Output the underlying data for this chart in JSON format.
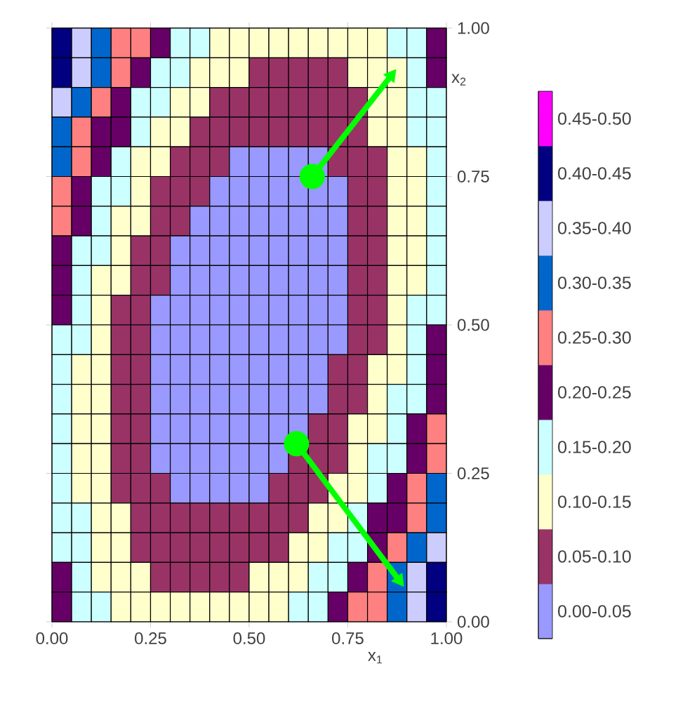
{
  "chart_data": {
    "type": "heatmap",
    "x": [
      0.025,
      0.075,
      0.125,
      0.175,
      0.225,
      0.275,
      0.325,
      0.375,
      0.425,
      0.475,
      0.525,
      0.575,
      0.625,
      0.675,
      0.725,
      0.775,
      0.825,
      0.875,
      0.925,
      0.975
    ],
    "y": [
      0.975,
      0.925,
      0.875,
      0.825,
      0.775,
      0.725,
      0.675,
      0.625,
      0.575,
      0.525,
      0.475,
      0.425,
      0.375,
      0.325,
      0.275,
      0.225,
      0.175,
      0.125,
      0.075,
      0.025
    ],
    "cells": [
      [
        0.425,
        0.375,
        0.325,
        0.275,
        0.275,
        0.225,
        0.175,
        0.175,
        0.125,
        0.125,
        0.125,
        0.125,
        0.125,
        0.125,
        0.125,
        0.125,
        0.125,
        0.175,
        0.175,
        0.225
      ],
      [
        0.425,
        0.375,
        0.325,
        0.275,
        0.225,
        0.175,
        0.175,
        0.125,
        0.125,
        0.125,
        0.075,
        0.075,
        0.075,
        0.075,
        0.075,
        0.125,
        0.125,
        0.125,
        0.175,
        0.225
      ],
      [
        0.375,
        0.325,
        0.275,
        0.225,
        0.175,
        0.175,
        0.125,
        0.125,
        0.075,
        0.075,
        0.075,
        0.075,
        0.075,
        0.075,
        0.075,
        0.075,
        0.125,
        0.125,
        0.175,
        0.175
      ],
      [
        0.325,
        0.275,
        0.225,
        0.225,
        0.175,
        0.125,
        0.125,
        0.075,
        0.075,
        0.075,
        0.075,
        0.075,
        0.075,
        0.075,
        0.075,
        0.075,
        0.125,
        0.125,
        0.175,
        0.175
      ],
      [
        0.325,
        0.275,
        0.225,
        0.175,
        0.125,
        0.125,
        0.075,
        0.075,
        0.075,
        0.025,
        0.025,
        0.025,
        0.025,
        0.025,
        0.075,
        0.075,
        0.075,
        0.125,
        0.125,
        0.175
      ],
      [
        0.275,
        0.225,
        0.175,
        0.175,
        0.125,
        0.075,
        0.075,
        0.075,
        0.025,
        0.025,
        0.025,
        0.025,
        0.025,
        0.025,
        0.025,
        0.075,
        0.075,
        0.125,
        0.125,
        0.175
      ],
      [
        0.275,
        0.225,
        0.175,
        0.125,
        0.125,
        0.075,
        0.075,
        0.025,
        0.025,
        0.025,
        0.025,
        0.025,
        0.025,
        0.025,
        0.025,
        0.075,
        0.075,
        0.125,
        0.125,
        0.175
      ],
      [
        0.225,
        0.175,
        0.175,
        0.125,
        0.075,
        0.075,
        0.025,
        0.025,
        0.025,
        0.025,
        0.025,
        0.025,
        0.025,
        0.025,
        0.025,
        0.075,
        0.075,
        0.125,
        0.125,
        0.175
      ],
      [
        0.225,
        0.175,
        0.125,
        0.125,
        0.075,
        0.075,
        0.025,
        0.025,
        0.025,
        0.025,
        0.025,
        0.025,
        0.025,
        0.025,
        0.025,
        0.075,
        0.075,
        0.125,
        0.125,
        0.175
      ],
      [
        0.225,
        0.175,
        0.125,
        0.075,
        0.075,
        0.025,
        0.025,
        0.025,
        0.025,
        0.025,
        0.025,
        0.025,
        0.025,
        0.025,
        0.025,
        0.075,
        0.075,
        0.125,
        0.175,
        0.175
      ],
      [
        0.175,
        0.175,
        0.125,
        0.075,
        0.075,
        0.025,
        0.025,
        0.025,
        0.025,
        0.025,
        0.025,
        0.025,
        0.025,
        0.025,
        0.025,
        0.075,
        0.075,
        0.125,
        0.175,
        0.225
      ],
      [
        0.175,
        0.125,
        0.125,
        0.075,
        0.075,
        0.025,
        0.025,
        0.025,
        0.025,
        0.025,
        0.025,
        0.025,
        0.025,
        0.025,
        0.075,
        0.075,
        0.125,
        0.125,
        0.175,
        0.225
      ],
      [
        0.175,
        0.125,
        0.125,
        0.075,
        0.075,
        0.025,
        0.025,
        0.025,
        0.025,
        0.025,
        0.025,
        0.025,
        0.025,
        0.025,
        0.075,
        0.075,
        0.125,
        0.175,
        0.175,
        0.225
      ],
      [
        0.175,
        0.125,
        0.125,
        0.075,
        0.075,
        0.025,
        0.025,
        0.025,
        0.025,
        0.025,
        0.025,
        0.025,
        0.025,
        0.075,
        0.075,
        0.125,
        0.125,
        0.175,
        0.225,
        0.275
      ],
      [
        0.175,
        0.125,
        0.125,
        0.075,
        0.075,
        0.025,
        0.025,
        0.025,
        0.025,
        0.025,
        0.025,
        0.025,
        0.075,
        0.075,
        0.075,
        0.125,
        0.175,
        0.175,
        0.225,
        0.275
      ],
      [
        0.175,
        0.125,
        0.125,
        0.075,
        0.075,
        0.075,
        0.025,
        0.025,
        0.025,
        0.025,
        0.025,
        0.075,
        0.075,
        0.075,
        0.125,
        0.125,
        0.175,
        0.225,
        0.275,
        0.325
      ],
      [
        0.175,
        0.175,
        0.125,
        0.125,
        0.075,
        0.075,
        0.075,
        0.075,
        0.075,
        0.075,
        0.075,
        0.075,
        0.075,
        0.125,
        0.125,
        0.175,
        0.225,
        0.225,
        0.275,
        0.325
      ],
      [
        0.175,
        0.175,
        0.125,
        0.125,
        0.075,
        0.075,
        0.075,
        0.075,
        0.075,
        0.075,
        0.075,
        0.075,
        0.125,
        0.125,
        0.175,
        0.175,
        0.225,
        0.275,
        0.325,
        0.375
      ],
      [
        0.225,
        0.175,
        0.125,
        0.125,
        0.125,
        0.075,
        0.075,
        0.075,
        0.075,
        0.075,
        0.125,
        0.125,
        0.125,
        0.175,
        0.175,
        0.225,
        0.275,
        0.325,
        0.375,
        0.425
      ],
      [
        0.225,
        0.175,
        0.175,
        0.125,
        0.125,
        0.125,
        0.125,
        0.125,
        0.125,
        0.125,
        0.125,
        0.125,
        0.175,
        0.175,
        0.225,
        0.275,
        0.275,
        0.325,
        0.375,
        0.425
      ]
    ],
    "colors": [
      "#9999ff",
      "#993366",
      "#ffffcc",
      "#ccffff",
      "#660066",
      "#ff8080",
      "#0066cc",
      "#ccccff",
      "#000080",
      "#ff00ff"
    ],
    "clim": [
      0,
      0.5
    ],
    "cticks": [
      {
        "value": 0.025,
        "label": "0.00-0.05"
      },
      {
        "value": 0.075,
        "label": "0.05-0.10"
      },
      {
        "value": 0.125,
        "label": "0.10-0.15"
      },
      {
        "value": 0.175,
        "label": "0.15-0.20"
      },
      {
        "value": 0.225,
        "label": "0.20-0.25"
      },
      {
        "value": 0.275,
        "label": "0.25-0.30"
      },
      {
        "value": 0.325,
        "label": "0.30-0.35"
      },
      {
        "value": 0.375,
        "label": "0.35-0.40"
      },
      {
        "value": 0.425,
        "label": "0.40-0.45"
      },
      {
        "value": 0.475,
        "label": "0.45-0.50"
      }
    ],
    "xlim": [
      0,
      1
    ],
    "ylim": [
      0,
      1
    ],
    "xticks": [
      {
        "value": 0,
        "label": "0.00"
      },
      {
        "value": 0.25,
        "label": "0.25"
      },
      {
        "value": 0.5,
        "label": "0.50"
      },
      {
        "value": 0.75,
        "label": "0.75"
      },
      {
        "value": 1,
        "label": "1.00"
      }
    ],
    "yticks": [
      {
        "value": 0,
        "label": "0.00"
      },
      {
        "value": 0.25,
        "label": "0.25"
      },
      {
        "value": 0.5,
        "label": "0.50"
      },
      {
        "value": 0.75,
        "label": "0.75"
      },
      {
        "value": 1,
        "label": "1.00"
      }
    ],
    "xlabel": "x$_{1}$",
    "ylabel": "x$_{2}$",
    "series": [
      {
        "type": "line",
        "color": "#00ff00",
        "marker": "circle",
        "x": [
          0.62,
          0.88
        ],
        "values": [
          0.3,
          0.07
        ]
      },
      {
        "type": "line",
        "color": "#00ff00",
        "marker": "circle",
        "x": [
          0.66,
          0.86
        ],
        "values": [
          0.75,
          0.92
        ]
      }
    ]
  }
}
